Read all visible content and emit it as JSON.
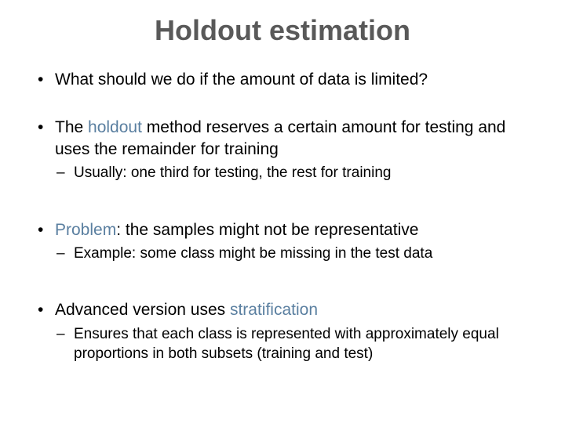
{
  "title": "Holdout estimation",
  "colors": {
    "title_text": "#595959",
    "body_text": "#000000",
    "accent": "#5a7fa0",
    "background": "#ffffff"
  },
  "typography": {
    "title_fontsize": 36,
    "title_weight": "bold",
    "level1_fontsize": 21,
    "level2_fontsize": 19,
    "font_family": "Arial"
  },
  "bullets": {
    "b1": {
      "text": "What should we do if the amount of data is limited?"
    },
    "b2": {
      "pre": "The ",
      "accent": "holdout",
      "post": " method reserves a certain amount for testing and uses the remainder for training",
      "sub1": "Usually: one third for testing, the rest for training"
    },
    "b3": {
      "accent": "Problem",
      "post": ": the samples might not be representative",
      "sub1": "Example: some class might be missing in the test data"
    },
    "b4": {
      "pre": "Advanced version uses ",
      "accent": "stratification",
      "sub1": "Ensures that each class is represented with approximately equal proportions in both subsets (training and test)"
    }
  }
}
